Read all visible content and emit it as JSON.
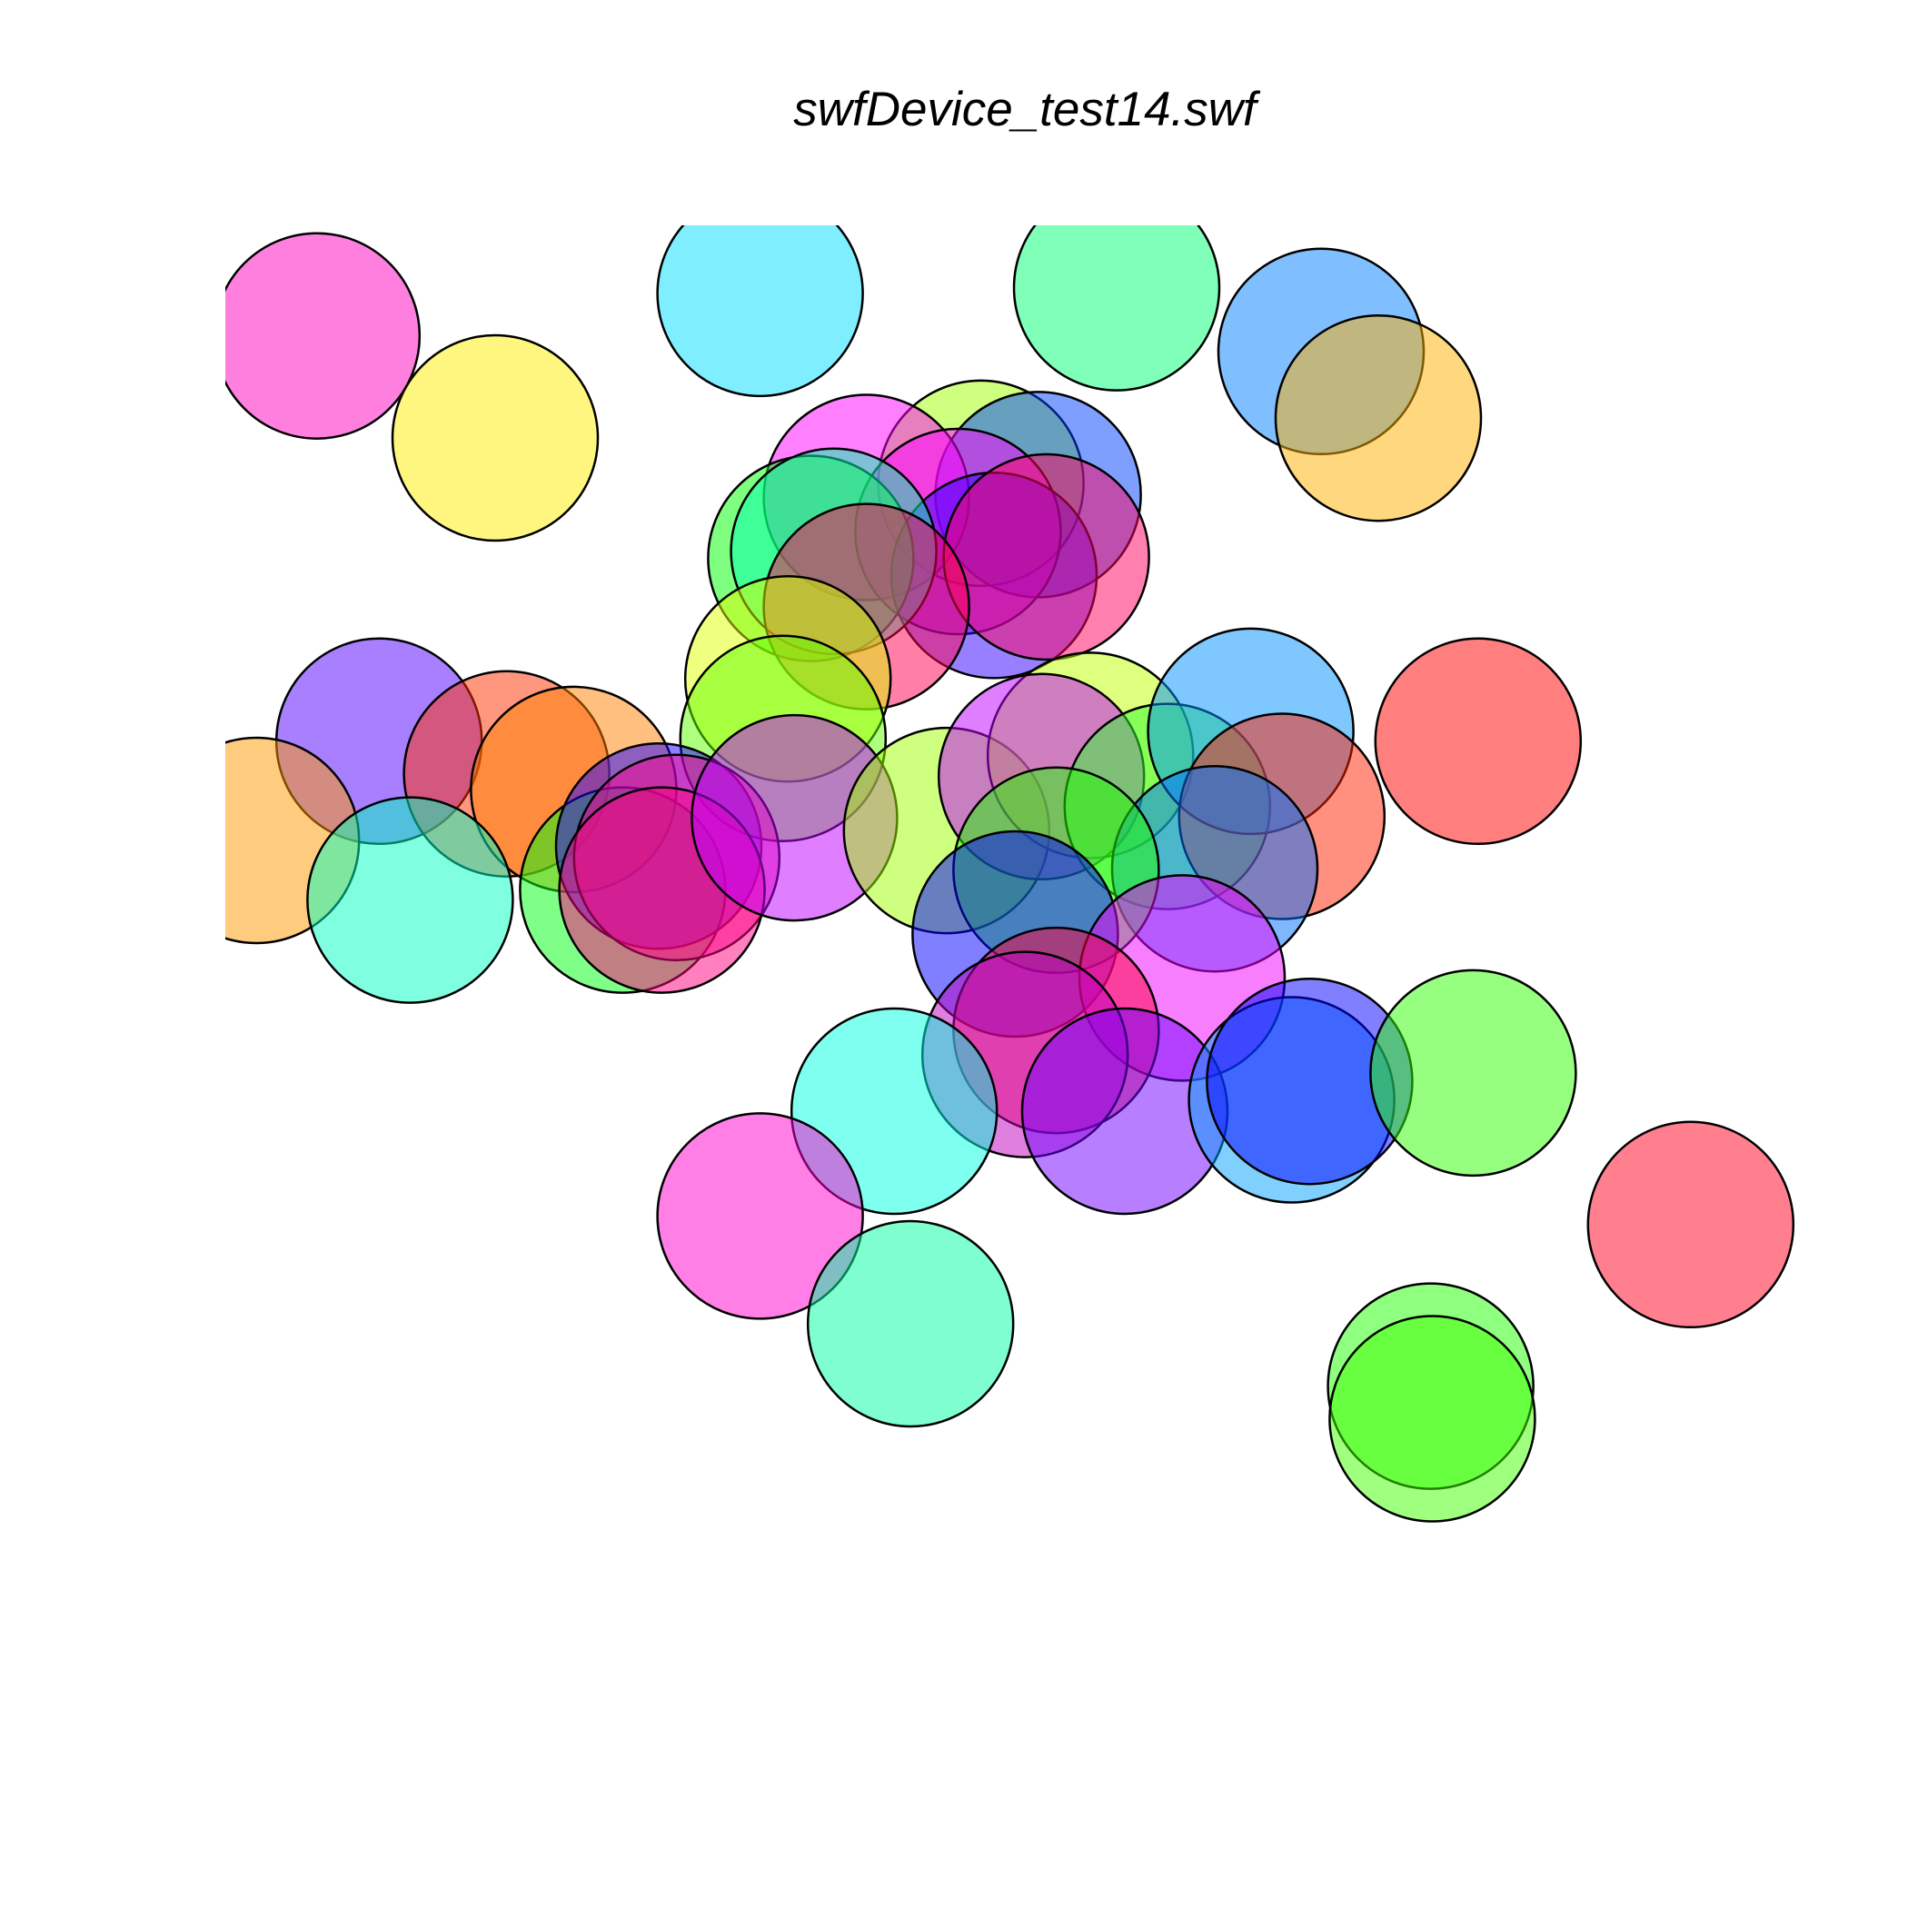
{
  "chart_data": {
    "type": "scatter",
    "title": "swfDevice_test14.swf",
    "xlabel": "",
    "ylabel": "",
    "xlim": [
      0,
      1
    ],
    "ylim": [
      0,
      1
    ],
    "axes_visible": false,
    "grid": false,
    "marker": "circle",
    "marker_outline": "#000000",
    "point_alpha": 0.5,
    "points": [
      {
        "x": 0.056,
        "y": 0.922,
        "color": "#ff00c0"
      },
      {
        "x": 0.165,
        "y": 0.85,
        "color": "#ffee00"
      },
      {
        "x": 0.327,
        "y": 0.952,
        "color": "#00e0ff"
      },
      {
        "x": 0.545,
        "y": 0.956,
        "color": "#00ff70"
      },
      {
        "x": 0.67,
        "y": 0.911,
        "color": "#0080ff"
      },
      {
        "x": 0.705,
        "y": 0.864,
        "color": "#ffb000"
      },
      {
        "x": 0.462,
        "y": 0.818,
        "color": "#a0ff00"
      },
      {
        "x": 0.497,
        "y": 0.81,
        "color": "#0040ff"
      },
      {
        "x": 0.392,
        "y": 0.808,
        "color": "#ff00ff"
      },
      {
        "x": 0.448,
        "y": 0.784,
        "color": "#ff00ff"
      },
      {
        "x": 0.47,
        "y": 0.753,
        "color": "#3000ff"
      },
      {
        "x": 0.502,
        "y": 0.766,
        "color": "#ff0060"
      },
      {
        "x": 0.358,
        "y": 0.765,
        "color": "#00ff00"
      },
      {
        "x": 0.372,
        "y": 0.77,
        "color": "#00ffb0"
      },
      {
        "x": 0.392,
        "y": 0.731,
        "color": "#ff0050"
      },
      {
        "x": 0.344,
        "y": 0.68,
        "color": "#e0ff00"
      },
      {
        "x": 0.341,
        "y": 0.638,
        "color": "#60ff00"
      },
      {
        "x": 0.094,
        "y": 0.636,
        "color": "#5000ff"
      },
      {
        "x": 0.172,
        "y": 0.613,
        "color": "#ff3000"
      },
      {
        "x": 0.213,
        "y": 0.602,
        "color": "#ff8000"
      },
      {
        "x": 0.019,
        "y": 0.566,
        "color": "#ff9a00"
      },
      {
        "x": 0.113,
        "y": 0.524,
        "color": "#00ffc0"
      },
      {
        "x": 0.243,
        "y": 0.531,
        "color": "#00ff10"
      },
      {
        "x": 0.265,
        "y": 0.562,
        "color": "#2000ff"
      },
      {
        "x": 0.276,
        "y": 0.554,
        "color": "#ff0090"
      },
      {
        "x": 0.267,
        "y": 0.531,
        "color": "#ff0080"
      },
      {
        "x": 0.348,
        "y": 0.582,
        "color": "#c000ff"
      },
      {
        "x": 0.441,
        "y": 0.573,
        "color": "#a0ff00"
      },
      {
        "x": 0.529,
        "y": 0.626,
        "color": "#c0ff00"
      },
      {
        "x": 0.499,
        "y": 0.611,
        "color": "#c000ff"
      },
      {
        "x": 0.576,
        "y": 0.59,
        "color": "#30ff30"
      },
      {
        "x": 0.627,
        "y": 0.643,
        "color": "#0090ff"
      },
      {
        "x": 0.646,
        "y": 0.583,
        "color": "#ff2000"
      },
      {
        "x": 0.605,
        "y": 0.546,
        "color": "#0070ff"
      },
      {
        "x": 0.508,
        "y": 0.545,
        "color": "#20ff00"
      },
      {
        "x": 0.483,
        "y": 0.5,
        "color": "#0000ff"
      },
      {
        "x": 0.585,
        "y": 0.469,
        "color": "#f000ff"
      },
      {
        "x": 0.766,
        "y": 0.636,
        "color": "#ff0000"
      },
      {
        "x": 0.508,
        "y": 0.432,
        "color": "#ff0040"
      },
      {
        "x": 0.489,
        "y": 0.415,
        "color": "#c000c0"
      },
      {
        "x": 0.409,
        "y": 0.375,
        "color": "#00ffe0"
      },
      {
        "x": 0.55,
        "y": 0.375,
        "color": "#7000ff"
      },
      {
        "x": 0.652,
        "y": 0.383,
        "color": "#00a0ff"
      },
      {
        "x": 0.663,
        "y": 0.396,
        "color": "#0000ff"
      },
      {
        "x": 0.763,
        "y": 0.402,
        "color": "#30ff00"
      },
      {
        "x": 0.327,
        "y": 0.301,
        "color": "#ff00d0"
      },
      {
        "x": 0.419,
        "y": 0.225,
        "color": "#00ffa0"
      },
      {
        "x": 0.737,
        "y": 0.181,
        "color": "#20ff00"
      },
      {
        "x": 0.738,
        "y": 0.158,
        "color": "#40ff00"
      },
      {
        "x": 0.896,
        "y": 0.295,
        "color": "#ff0020"
      }
    ]
  }
}
